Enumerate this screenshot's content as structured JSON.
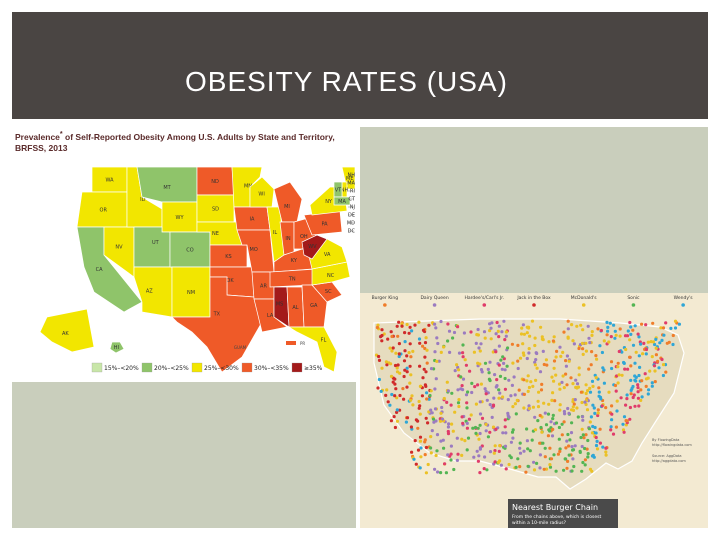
{
  "slide": {
    "title": "OBESITY RATES (USA)",
    "colors": {
      "header": "#4a4543",
      "panel": "#c9cebc"
    }
  },
  "obesity_map": {
    "title_prefix": "Prevalence",
    "title_sup": "*",
    "title_rest": " of Self-Reported Obesity Among U.S. Adults by State and Territory,",
    "title_line2": "BRFSS, 2013",
    "legend": [
      {
        "label": "15%–<20%",
        "color": "#c8e6a8"
      },
      {
        "label": "20%–<25%",
        "color": "#8fc46a"
      },
      {
        "label": "25%–<30%",
        "color": "#f2e600"
      },
      {
        "label": "30%–<35%",
        "color": "#ef5a28"
      },
      {
        "label": "≥35%",
        "color": "#a31a1a"
      }
    ],
    "territory_labels": [
      "GUAM",
      "PR"
    ],
    "states": [
      {
        "abbr": "WA",
        "cls": 2
      },
      {
        "abbr": "OR",
        "cls": 2
      },
      {
        "abbr": "CA",
        "cls": 1
      },
      {
        "abbr": "NV",
        "cls": 2
      },
      {
        "abbr": "ID",
        "cls": 2
      },
      {
        "abbr": "MT",
        "cls": 1
      },
      {
        "abbr": "WY",
        "cls": 2
      },
      {
        "abbr": "UT",
        "cls": 1
      },
      {
        "abbr": "AZ",
        "cls": 2
      },
      {
        "abbr": "CO",
        "cls": 1
      },
      {
        "abbr": "NM",
        "cls": 2
      },
      {
        "abbr": "ND",
        "cls": 3
      },
      {
        "abbr": "SD",
        "cls": 2
      },
      {
        "abbr": "NE",
        "cls": 2
      },
      {
        "abbr": "KS",
        "cls": 3
      },
      {
        "abbr": "OK",
        "cls": 3
      },
      {
        "abbr": "TX",
        "cls": 3
      },
      {
        "abbr": "MN",
        "cls": 2
      },
      {
        "abbr": "IA",
        "cls": 3
      },
      {
        "abbr": "MO",
        "cls": 3
      },
      {
        "abbr": "AR",
        "cls": 3
      },
      {
        "abbr": "LA",
        "cls": 3
      },
      {
        "abbr": "WI",
        "cls": 2
      },
      {
        "abbr": "IL",
        "cls": 2
      },
      {
        "abbr": "MI",
        "cls": 3
      },
      {
        "abbr": "IN",
        "cls": 3
      },
      {
        "abbr": "OH",
        "cls": 3
      },
      {
        "abbr": "KY",
        "cls": 3
      },
      {
        "abbr": "TN",
        "cls": 3
      },
      {
        "abbr": "MS",
        "cls": 4
      },
      {
        "abbr": "AL",
        "cls": 3
      },
      {
        "abbr": "GA",
        "cls": 3
      },
      {
        "abbr": "FL",
        "cls": 2
      },
      {
        "abbr": "SC",
        "cls": 3
      },
      {
        "abbr": "NC",
        "cls": 2
      },
      {
        "abbr": "VA",
        "cls": 2
      },
      {
        "abbr": "WV",
        "cls": 4
      },
      {
        "abbr": "PA",
        "cls": 3
      },
      {
        "abbr": "NY",
        "cls": 2
      },
      {
        "abbr": "ME",
        "cls": 2
      },
      {
        "abbr": "NH",
        "cls": 2
      },
      {
        "abbr": "VT",
        "cls": 1
      },
      {
        "abbr": "MA",
        "cls": 1
      },
      {
        "abbr": "AK",
        "cls": 2
      },
      {
        "abbr": "HI",
        "cls": 1
      }
    ],
    "east_callouts": [
      "NH",
      "MA",
      "RI",
      "CT",
      "NJ",
      "DE",
      "MD",
      "DC"
    ]
  },
  "burger_map": {
    "chains": [
      {
        "name": "Burger King",
        "color": "#f07d2a"
      },
      {
        "name": "Dairy Queen",
        "color": "#9b7bc0"
      },
      {
        "name": "Hardee's/Carl's Jr.",
        "color": "#e03c6a"
      },
      {
        "name": "Jack in the Box",
        "color": "#d02a2a"
      },
      {
        "name": "McDonald's",
        "color": "#ebc125"
      },
      {
        "name": "Sonic",
        "color": "#53b553"
      },
      {
        "name": "Wendy's",
        "color": "#2fa6d6"
      }
    ],
    "title": "Nearest Burger Chain",
    "subtitle_1": "From the chains above, which is closest",
    "subtitle_2": "within a 10-mile radius?",
    "credit_1": "By FlowingData",
    "credit_2": "http://flowingdata.com",
    "credit_3": "Source: AggData",
    "credit_4": "http://aggdata.com",
    "colors": {
      "background": "#f3ead2",
      "land": "#e6dcbf",
      "outline": "#ffffff",
      "title_band": "#4a4a4a"
    }
  }
}
